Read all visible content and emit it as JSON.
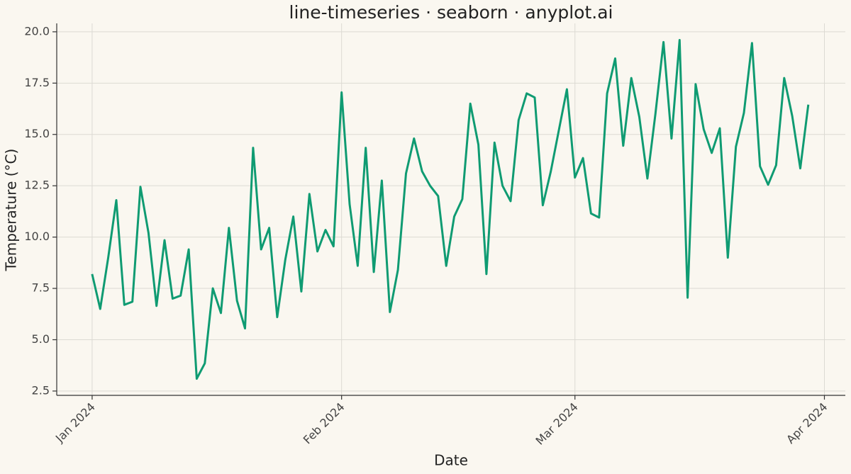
{
  "chart_data": {
    "type": "line",
    "title": "line-timeseries · seaborn · anyplot.ai",
    "x_label": "Date",
    "y_label": "Temperature (°C)",
    "x": [
      0,
      1,
      2,
      3,
      4,
      5,
      6,
      7,
      8,
      9,
      10,
      11,
      12,
      13,
      14,
      15,
      16,
      17,
      18,
      19,
      20,
      21,
      22,
      23,
      24,
      25,
      26,
      27,
      28,
      29,
      30,
      31,
      32,
      33,
      34,
      35,
      36,
      37,
      38,
      39,
      40,
      41,
      42,
      43,
      44,
      45,
      46,
      47,
      48,
      49,
      50,
      51,
      52,
      53,
      54,
      55,
      56,
      57,
      58,
      59,
      60,
      61,
      62,
      63,
      64,
      65,
      66,
      67,
      68,
      69,
      70,
      71,
      72,
      73,
      74,
      75,
      76,
      77,
      78,
      79,
      80,
      81,
      82,
      83,
      84,
      85,
      86,
      87,
      88,
      89
    ],
    "series": [
      {
        "color": "#0f9b72",
        "values": [
          8.2,
          6.5,
          9.0,
          11.8,
          6.7,
          6.85,
          12.45,
          10.2,
          6.65,
          9.85,
          7.0,
          7.15,
          9.4,
          3.1,
          3.85,
          7.5,
          6.3,
          10.45,
          6.9,
          5.55,
          14.35,
          9.4,
          10.45,
          6.1,
          8.9,
          11.0,
          7.35,
          12.1,
          9.3,
          10.35,
          9.55,
          17.05,
          11.6,
          8.6,
          14.35,
          8.3,
          12.75,
          6.35,
          8.4,
          13.1,
          14.8,
          13.2,
          12.5,
          12.0,
          8.6,
          11.0,
          11.85,
          16.5,
          14.5,
          8.2,
          14.6,
          12.5,
          11.75,
          15.7,
          17.0,
          16.8,
          11.55,
          13.2,
          15.2,
          17.2,
          12.9,
          13.85,
          11.15,
          10.95,
          17.0,
          18.7,
          14.45,
          17.75,
          15.85,
          12.85,
          16.0,
          19.5,
          14.8,
          19.6,
          7.05,
          17.45,
          15.25,
          14.1,
          15.3,
          9.0,
          14.4,
          16.05,
          19.45,
          13.45,
          12.55,
          13.5,
          17.75,
          15.9,
          13.35,
          16.45
        ]
      }
    ],
    "xlim": [
      -4.4,
      93.6
    ],
    "xticks": [
      {
        "value": 0,
        "label": "Jan 2024"
      },
      {
        "value": 31,
        "label": "Feb 2024"
      },
      {
        "value": 60,
        "label": "Mar 2024"
      },
      {
        "value": 91,
        "label": "Apr 2024"
      }
    ],
    "ylim": [
      2.29,
      20.41
    ],
    "yticks": [
      {
        "value": 2.5,
        "label": "2.5"
      },
      {
        "value": 5,
        "label": "5.0"
      },
      {
        "value": 7.5,
        "label": "7.5"
      },
      {
        "value": 10,
        "label": "10.0"
      },
      {
        "value": 12.5,
        "label": "12.5"
      },
      {
        "value": 15,
        "label": "15.0"
      },
      {
        "value": 17.5,
        "label": "17.5"
      },
      {
        "value": 20,
        "label": "20.0"
      }
    ],
    "grid": true
  }
}
